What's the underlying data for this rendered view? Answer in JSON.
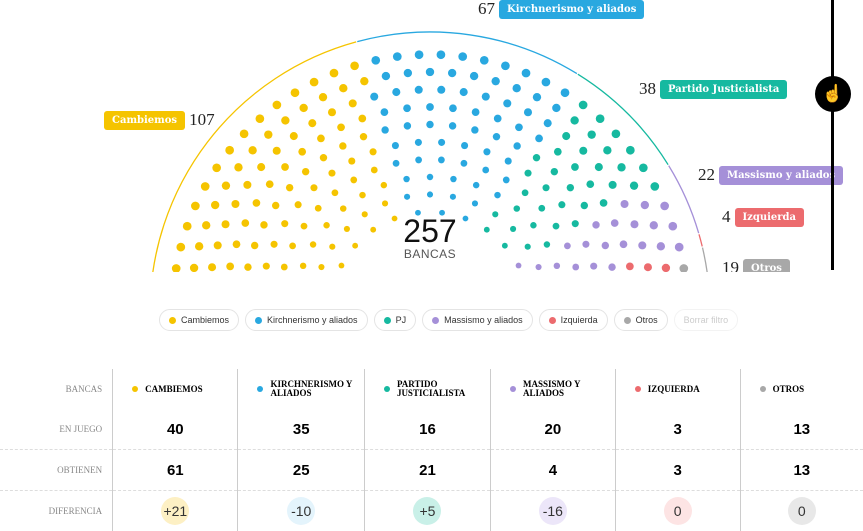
{
  "chart_data": {
    "type": "parliament",
    "total": 257,
    "total_label": "BANCAS",
    "series": [
      {
        "name": "Cambiemos",
        "value": 107,
        "color": "#f5c400"
      },
      {
        "name": "Kirchnerismo y aliados",
        "value": 67,
        "color": "#29a8e0"
      },
      {
        "name": "Partido Justicialista",
        "value": 38,
        "color": "#16b9a0"
      },
      {
        "name": "Massismo y aliados",
        "value": 22,
        "color": "#a590d8"
      },
      {
        "name": "Izquierda",
        "value": 4,
        "color": "#ec6b6e"
      },
      {
        "name": "Otros",
        "value": 19,
        "color": "#a8a8a8"
      }
    ]
  },
  "filters": [
    "Cambiemos",
    "Kirchnerismo y aliados",
    "PJ",
    "Massismo y aliados",
    "Izquierda",
    "Otros"
  ],
  "clear_filter": "Borrar filtro",
  "table": {
    "header_label": "BANCAS",
    "columns": [
      "CAMBIEMOS",
      "KIRCHNERISMO Y ALIADOS",
      "PARTIDO JUSTICIALISTA",
      "MASSISMO Y ALIADOS",
      "IZQUIERDA",
      "OTROS"
    ],
    "rows": [
      {
        "label": "EN JUEGO",
        "values": [
          "40",
          "35",
          "16",
          "20",
          "3",
          "13"
        ]
      },
      {
        "label": "OBTIENEN",
        "values": [
          "61",
          "25",
          "21",
          "4",
          "3",
          "13"
        ]
      },
      {
        "label": "DIFERENCIA",
        "values": [
          "+21",
          "-10",
          "+5",
          "-16",
          "0",
          "0"
        ]
      }
    ],
    "diff_colors": [
      "#fdf0c4",
      "#e4f4fc",
      "#c9f0e8",
      "#ece6f9",
      "#fde4e4",
      "#e8e8e8"
    ]
  }
}
